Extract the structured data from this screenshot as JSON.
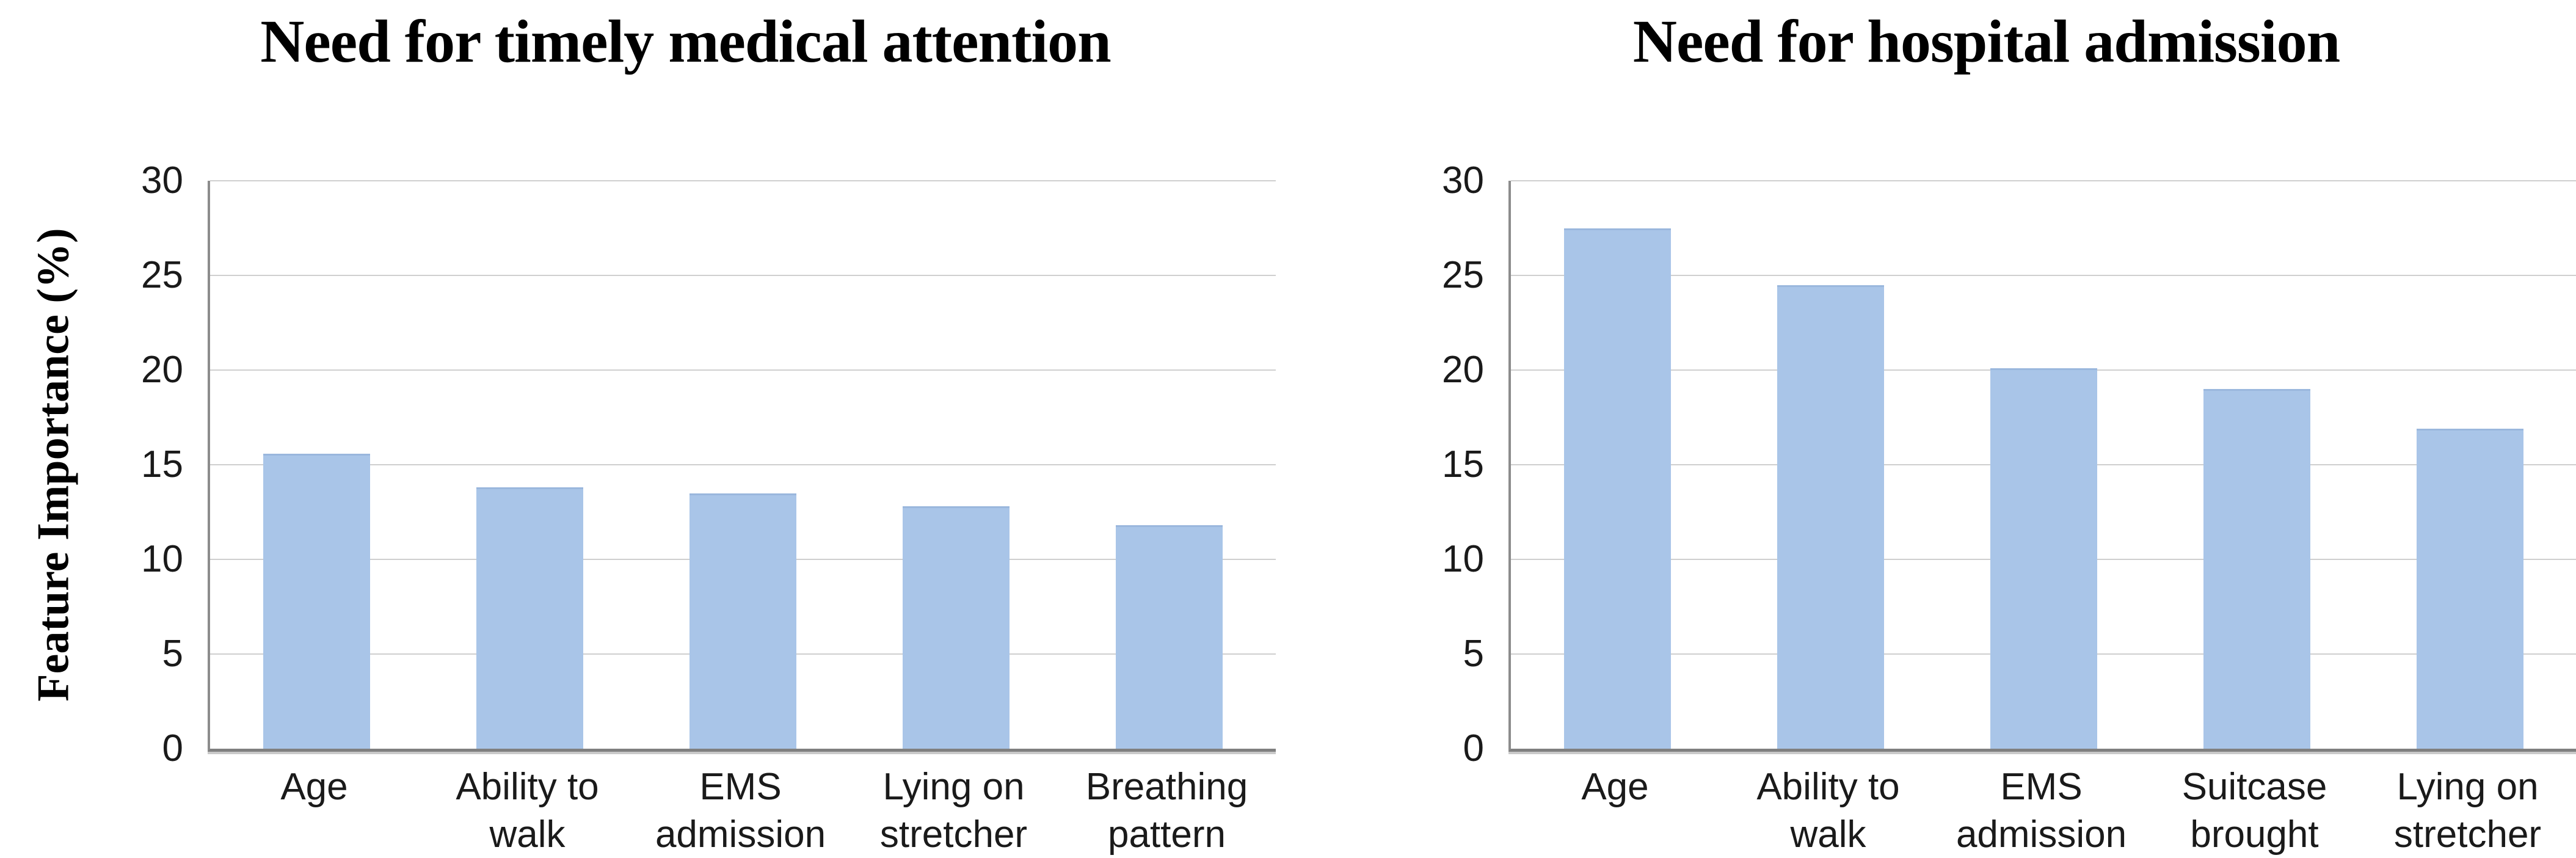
{
  "figure": {
    "ylabel": "Feature Importance (%)"
  },
  "colors": {
    "bar_fill": "#a9c5e8",
    "bar_edge": "#9ab7dd",
    "gridline": "#cfcfcf",
    "axis_line": "#8c8c8c",
    "axis_bottom": "#808080",
    "text": "#1a1a1a"
  },
  "chart_data": [
    {
      "type": "bar",
      "title": "Need for timely medical attention",
      "categories": [
        "Age",
        "Ability to walk",
        "EMS\nadmission",
        "Lying on\nstretcher",
        "Breathing\npattern"
      ],
      "values": [
        15.5,
        13.7,
        13.4,
        12.7,
        11.7
      ],
      "xlabel": "",
      "ylabel": "Feature Importance (%)",
      "ylim": [
        0,
        30
      ],
      "yticks": [
        0,
        5,
        10,
        15,
        20,
        25,
        30
      ],
      "grid": true,
      "legend": "none"
    },
    {
      "type": "bar",
      "title": "Need for hospital admission",
      "categories": [
        "Age",
        "Ability to walk",
        "EMS\nadmission",
        "Suitcase\nbrought",
        "Lying on\nstretcher"
      ],
      "values": [
        27.4,
        24.4,
        20.0,
        18.9,
        16.8
      ],
      "xlabel": "",
      "ylabel": "",
      "ylim": [
        0,
        30
      ],
      "yticks": [
        0,
        5,
        10,
        15,
        20,
        25,
        30
      ],
      "grid": true,
      "legend": "none"
    }
  ]
}
